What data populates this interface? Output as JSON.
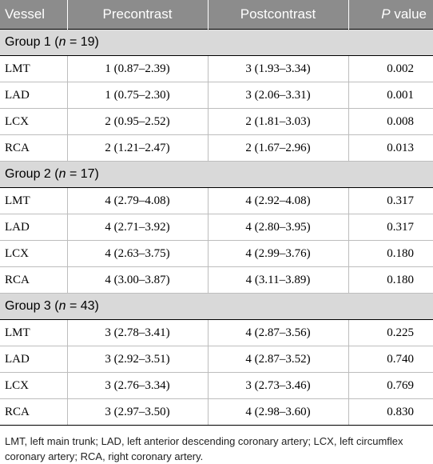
{
  "header": {
    "vessel": "Vessel",
    "pre": "Precontrast",
    "post": "Postcontrast",
    "p_italic": "P",
    "p_rest": " value"
  },
  "groups": [
    {
      "label_prefix": "Group 1 (",
      "n_italic": "n",
      "label_suffix": " = 19)",
      "rows": [
        {
          "vessel": "LMT",
          "pre": "1 (0.87–2.39)",
          "post": "3 (1.93–3.34)",
          "p": "0.002"
        },
        {
          "vessel": "LAD",
          "pre": "1 (0.75–2.30)",
          "post": "3 (2.06–3.31)",
          "p": "0.001"
        },
        {
          "vessel": "LCX",
          "pre": "2 (0.95–2.52)",
          "post": "2 (1.81–3.03)",
          "p": "0.008"
        },
        {
          "vessel": "RCA",
          "pre": "2 (1.21–2.47)",
          "post": "2 (1.67–2.96)",
          "p": "0.013"
        }
      ]
    },
    {
      "label_prefix": "Group 2 (",
      "n_italic": "n",
      "label_suffix": " = 17)",
      "rows": [
        {
          "vessel": "LMT",
          "pre": "4 (2.79–4.08)",
          "post": "4 (2.92–4.08)",
          "p": "0.317"
        },
        {
          "vessel": "LAD",
          "pre": "4 (2.71–3.92)",
          "post": "4 (2.80–3.95)",
          "p": "0.317"
        },
        {
          "vessel": "LCX",
          "pre": "4 (2.63–3.75)",
          "post": "4 (2.99–3.76)",
          "p": "0.180"
        },
        {
          "vessel": "RCA",
          "pre": "4 (3.00–3.87)",
          "post": "4 (3.11–3.89)",
          "p": "0.180"
        }
      ]
    },
    {
      "label_prefix": "Group 3 (",
      "n_italic": "n",
      "label_suffix": " = 43)",
      "rows": [
        {
          "vessel": "LMT",
          "pre": "3 (2.78–3.41)",
          "post": "4 (2.87–3.56)",
          "p": "0.225"
        },
        {
          "vessel": "LAD",
          "pre": "3 (2.92–3.51)",
          "post": "4 (2.87–3.52)",
          "p": "0.740"
        },
        {
          "vessel": "LCX",
          "pre": "3 (2.76–3.34)",
          "post": "3 (2.73–3.46)",
          "p": "0.769"
        },
        {
          "vessel": "RCA",
          "pre": "3 (2.97–3.50)",
          "post": "4 (2.98–3.60)",
          "p": "0.830"
        }
      ]
    }
  ],
  "footnote": "LMT, left main trunk; LAD, left anterior descending coronary artery; LCX, left circumflex coronary artery; RCA, right coronary artery."
}
